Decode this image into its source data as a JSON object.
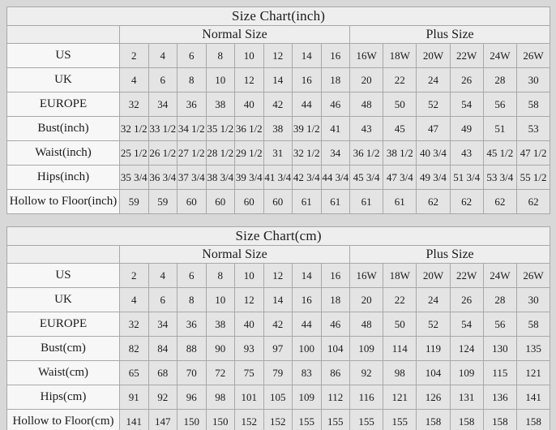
{
  "colors": {
    "page_background": "#d8d8d8",
    "header_cell_background": "#eeeeee",
    "label_cell_background": "#f7f7f7",
    "data_cell_background": "#e4e4e4",
    "border": "#a8a8a8",
    "text": "#1b1b1b"
  },
  "chart_data": [
    {
      "type": "table",
      "title": "Size Chart(inch)",
      "column_groups": [
        {
          "label": "Normal Size",
          "span": 8
        },
        {
          "label": "Plus Size",
          "span": 6
        }
      ],
      "rows": [
        {
          "label": "US",
          "values": [
            "2",
            "4",
            "6",
            "8",
            "10",
            "12",
            "14",
            "16",
            "16W",
            "18W",
            "20W",
            "22W",
            "24W",
            "26W"
          ]
        },
        {
          "label": "UK",
          "values": [
            "4",
            "6",
            "8",
            "10",
            "12",
            "14",
            "16",
            "18",
            "20",
            "22",
            "24",
            "26",
            "28",
            "30"
          ]
        },
        {
          "label": "EUROPE",
          "values": [
            "32",
            "34",
            "36",
            "38",
            "40",
            "42",
            "44",
            "46",
            "48",
            "50",
            "52",
            "54",
            "56",
            "58"
          ]
        },
        {
          "label": "Bust(inch)",
          "values": [
            "32 1/2",
            "33 1/2",
            "34 1/2",
            "35 1/2",
            "36 1/2",
            "38",
            "39 1/2",
            "41",
            "43",
            "45",
            "47",
            "49",
            "51",
            "53"
          ]
        },
        {
          "label": "Waist(inch)",
          "values": [
            "25 1/2",
            "26 1/2",
            "27 1/2",
            "28 1/2",
            "29 1/2",
            "31",
            "32 1/2",
            "34",
            "36 1/2",
            "38 1/2",
            "40 3/4",
            "43",
            "45 1/2",
            "47 1/2"
          ]
        },
        {
          "label": "Hips(inch)",
          "values": [
            "35 3/4",
            "36 3/4",
            "37 3/4",
            "38 3/4",
            "39 3/4",
            "41 3/4",
            "42 3/4",
            "44 3/4",
            "45 3/4",
            "47 3/4",
            "49 3/4",
            "51 3/4",
            "53 3/4",
            "55 1/2"
          ]
        },
        {
          "label": "Hollow to Floor(inch)",
          "values": [
            "59",
            "59",
            "60",
            "60",
            "60",
            "60",
            "61",
            "61",
            "61",
            "61",
            "62",
            "62",
            "62",
            "62"
          ]
        }
      ]
    },
    {
      "type": "table",
      "title": "Size Chart(cm)",
      "column_groups": [
        {
          "label": "Normal Size",
          "span": 8
        },
        {
          "label": "Plus Size",
          "span": 6
        }
      ],
      "rows": [
        {
          "label": "US",
          "values": [
            "2",
            "4",
            "6",
            "8",
            "10",
            "12",
            "14",
            "16",
            "16W",
            "18W",
            "20W",
            "22W",
            "24W",
            "26W"
          ]
        },
        {
          "label": "UK",
          "values": [
            "4",
            "6",
            "8",
            "10",
            "12",
            "14",
            "16",
            "18",
            "20",
            "22",
            "24",
            "26",
            "28",
            "30"
          ]
        },
        {
          "label": "EUROPE",
          "values": [
            "32",
            "34",
            "36",
            "38",
            "40",
            "42",
            "44",
            "46",
            "48",
            "50",
            "52",
            "54",
            "56",
            "58"
          ]
        },
        {
          "label": "Bust(cm)",
          "values": [
            "82",
            "84",
            "88",
            "90",
            "93",
            "97",
            "100",
            "104",
            "109",
            "114",
            "119",
            "124",
            "130",
            "135"
          ]
        },
        {
          "label": "Waist(cm)",
          "values": [
            "65",
            "68",
            "70",
            "72",
            "75",
            "79",
            "83",
            "86",
            "92",
            "98",
            "104",
            "109",
            "115",
            "121"
          ]
        },
        {
          "label": "Hips(cm)",
          "values": [
            "91",
            "92",
            "96",
            "98",
            "101",
            "105",
            "109",
            "112",
            "116",
            "121",
            "126",
            "131",
            "136",
            "141"
          ]
        },
        {
          "label": "Hollow to Floor(cm)",
          "values": [
            "141",
            "147",
            "150",
            "150",
            "152",
            "152",
            "155",
            "155",
            "155",
            "155",
            "158",
            "158",
            "158",
            "158"
          ]
        }
      ]
    }
  ]
}
